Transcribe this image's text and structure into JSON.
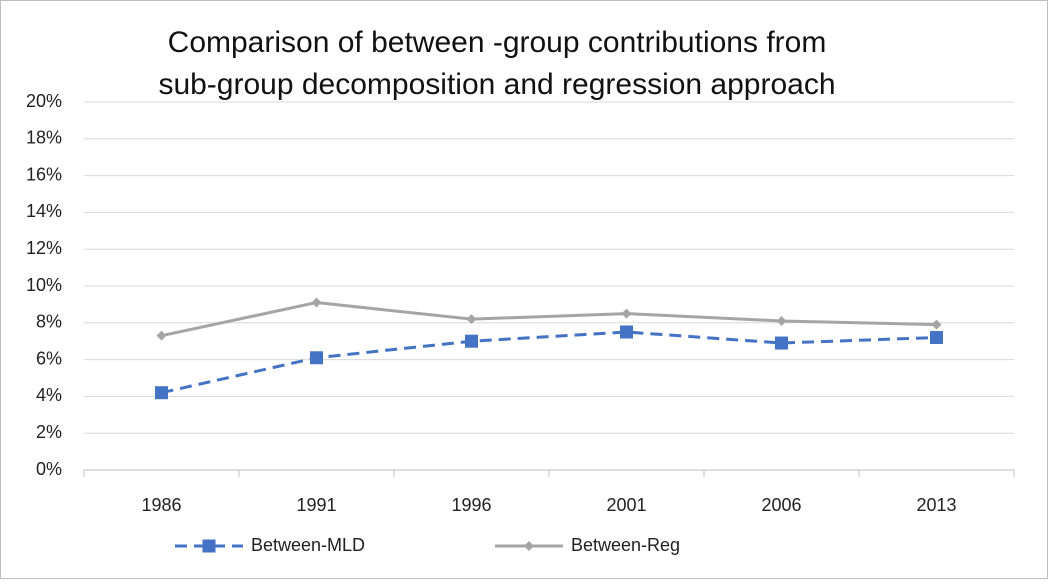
{
  "chart_data": {
    "type": "line",
    "title": [
      "Comparison of between -group contributions from",
      "sub-group decomposition and regression approach"
    ],
    "categories": [
      "1986",
      "1991",
      "1996",
      "2001",
      "2006",
      "2013"
    ],
    "series": [
      {
        "name": "Between-MLD",
        "color": "#4472c4",
        "dash": true,
        "marker": "square",
        "values": [
          4.2,
          6.1,
          7.0,
          7.5,
          6.9,
          7.2
        ]
      },
      {
        "name": "Between-Reg",
        "color": "#a5a5a5",
        "dash": false,
        "marker": "diamond",
        "values": [
          7.3,
          9.1,
          8.2,
          8.5,
          8.1,
          7.9
        ]
      }
    ],
    "ylim": [
      0,
      20
    ],
    "yticks": [
      {
        "value": 0,
        "label": "0%"
      },
      {
        "value": 2,
        "label": "2%"
      },
      {
        "value": 4,
        "label": "4%"
      },
      {
        "value": 6,
        "label": "6%"
      },
      {
        "value": 8,
        "label": "8%"
      },
      {
        "value": 10,
        "label": "10%"
      },
      {
        "value": 12,
        "label": "12%"
      },
      {
        "value": 14,
        "label": "14%"
      },
      {
        "value": 16,
        "label": "16%"
      },
      {
        "value": 18,
        "label": "18%"
      },
      {
        "value": 20,
        "label": "20%"
      }
    ],
    "grid": true,
    "legend": "bottom"
  }
}
